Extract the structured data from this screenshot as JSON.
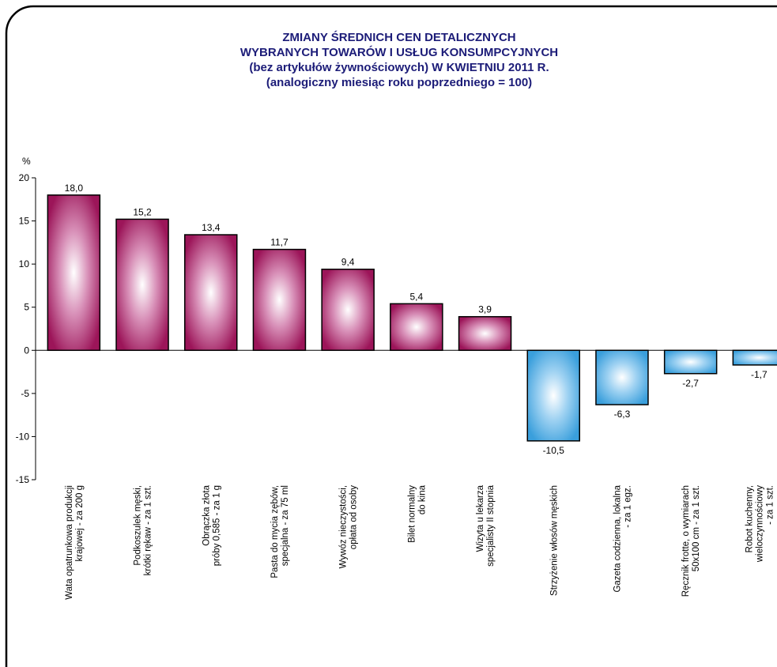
{
  "chart_data": {
    "type": "bar",
    "title": "ZMIANY ŚREDNICH CEN DETALICZNYCH\nWYBRANYCH TOWARÓW I USŁUG KONSUMPCYJNYCH\n(bez artykułów żywnościowych) W KWIETNIU 2011 R.\n(analogiczny miesiąc roku poprzedniego = 100)",
    "y_axis_label": "%",
    "categories": [
      "Wata opatrunkowa produkcji\nkrajowej - za 200 g",
      "Podkoszulek męski,\nkrótki rękaw - za 1 szt.",
      "Obrączka złota\npróby 0,585 - za 1 g",
      "Pasta do mycia zębów,\nspecjalna - za 75 ml",
      "Wywóz nieczystości,\nopłata od osoby",
      "Bilet normalny\ndo kina",
      "Wizyta u lekarza\nspecjalisty II stopnia",
      "Strzyżenie włosów męskich",
      "Gazeta codzienna, lokalna\n- za 1 egz.",
      "Ręcznik frotte, o wymiarach\n50x100 cm - za 1 szt.",
      "Robot kuchenny,\nwieloczynnościowy\n- za 1 szt."
    ],
    "values": [
      18.0,
      15.2,
      13.4,
      11.7,
      9.4,
      5.4,
      3.9,
      -10.5,
      -6.3,
      -2.7,
      -1.7
    ],
    "value_labels": [
      "18,0",
      "15,2",
      "13,4",
      "11,7",
      "9,4",
      "5,4",
      "3,9",
      "-10,5",
      "-6,3",
      "-2,7",
      "-1,7"
    ],
    "color": "#9c1559",
    "negative_color": "#3a9fdc",
    "ylim": [
      -15,
      20
    ],
    "yticks": [
      -15,
      -10,
      -5,
      0,
      5,
      10,
      15,
      20
    ]
  }
}
